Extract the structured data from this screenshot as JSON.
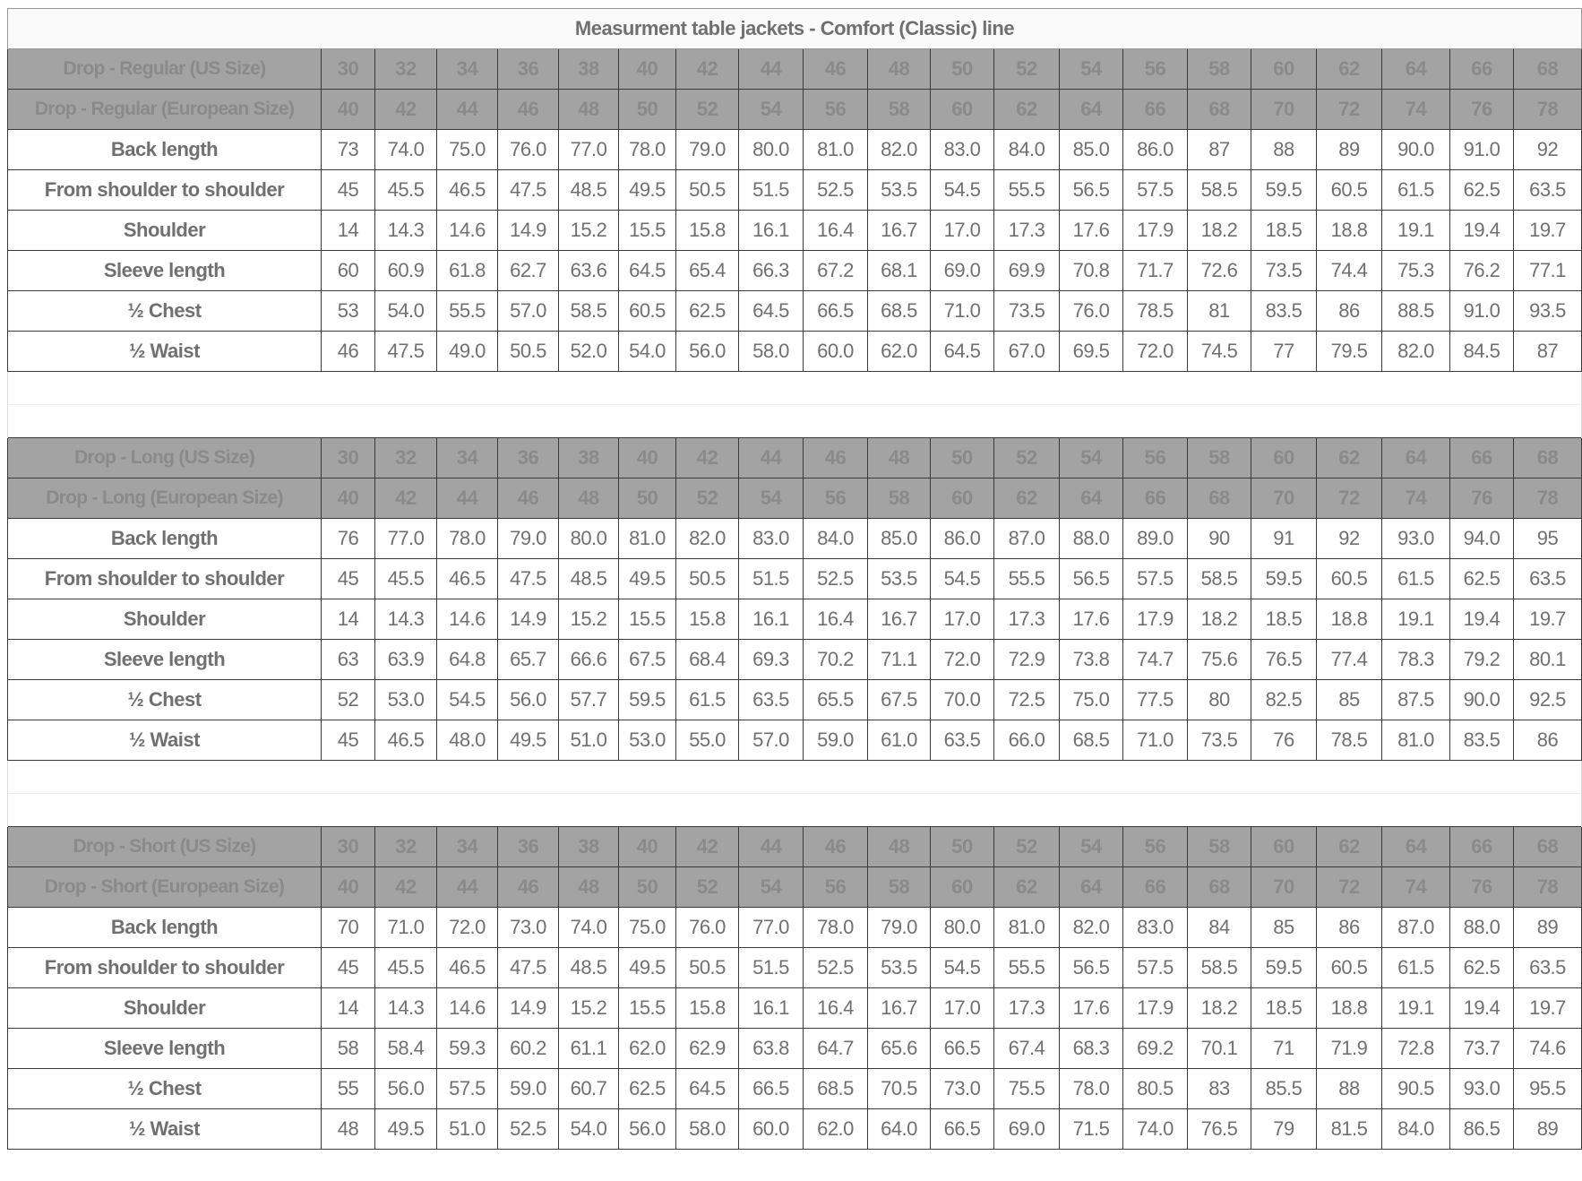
{
  "title": "Measurment table jackets - Comfort (Classic) line",
  "sections": [
    {
      "us_label": "Drop - Regular (US Size)",
      "eu_label": "Drop - Regular (European Size)",
      "us": [
        "30",
        "32",
        "34",
        "36",
        "38",
        "40",
        "42",
        "44",
        "46",
        "48",
        "50",
        "52",
        "54",
        "56",
        "58",
        "60",
        "62",
        "64",
        "66",
        "68"
      ],
      "eu": [
        "40",
        "42",
        "44",
        "46",
        "48",
        "50",
        "52",
        "54",
        "56",
        "58",
        "60",
        "62",
        "64",
        "66",
        "68",
        "70",
        "72",
        "74",
        "76",
        "78"
      ],
      "rows": [
        {
          "label": "Back length",
          "values": [
            "73",
            "74.0",
            "75.0",
            "76.0",
            "77.0",
            "78.0",
            "79.0",
            "80.0",
            "81.0",
            "82.0",
            "83.0",
            "84.0",
            "85.0",
            "86.0",
            "87",
            "88",
            "89",
            "90.0",
            "91.0",
            "92"
          ]
        },
        {
          "label": "From shoulder to shoulder",
          "values": [
            "45",
            "45.5",
            "46.5",
            "47.5",
            "48.5",
            "49.5",
            "50.5",
            "51.5",
            "52.5",
            "53.5",
            "54.5",
            "55.5",
            "56.5",
            "57.5",
            "58.5",
            "59.5",
            "60.5",
            "61.5",
            "62.5",
            "63.5"
          ]
        },
        {
          "label": "Shoulder",
          "values": [
            "14",
            "14.3",
            "14.6",
            "14.9",
            "15.2",
            "15.5",
            "15.8",
            "16.1",
            "16.4",
            "16.7",
            "17.0",
            "17.3",
            "17.6",
            "17.9",
            "18.2",
            "18.5",
            "18.8",
            "19.1",
            "19.4",
            "19.7"
          ]
        },
        {
          "label": "Sleeve length",
          "values": [
            "60",
            "60.9",
            "61.8",
            "62.7",
            "63.6",
            "64.5",
            "65.4",
            "66.3",
            "67.2",
            "68.1",
            "69.0",
            "69.9",
            "70.8",
            "71.7",
            "72.6",
            "73.5",
            "74.4",
            "75.3",
            "76.2",
            "77.1"
          ]
        },
        {
          "label": "½ Chest",
          "values": [
            "53",
            "54.0",
            "55.5",
            "57.0",
            "58.5",
            "60.5",
            "62.5",
            "64.5",
            "66.5",
            "68.5",
            "71.0",
            "73.5",
            "76.0",
            "78.5",
            "81",
            "83.5",
            "86",
            "88.5",
            "91.0",
            "93.5"
          ]
        },
        {
          "label": "½ Waist",
          "values": [
            "46",
            "47.5",
            "49.0",
            "50.5",
            "52.0",
            "54.0",
            "56.0",
            "58.0",
            "60.0",
            "62.0",
            "64.5",
            "67.0",
            "69.5",
            "72.0",
            "74.5",
            "77",
            "79.5",
            "82.0",
            "84.5",
            "87"
          ]
        }
      ]
    },
    {
      "us_label": "Drop - Long (US Size)",
      "eu_label": "Drop - Long (European Size)",
      "us": [
        "30",
        "32",
        "34",
        "36",
        "38",
        "40",
        "42",
        "44",
        "46",
        "48",
        "50",
        "52",
        "54",
        "56",
        "58",
        "60",
        "62",
        "64",
        "66",
        "68"
      ],
      "eu": [
        "40",
        "42",
        "44",
        "46",
        "48",
        "50",
        "52",
        "54",
        "56",
        "58",
        "60",
        "62",
        "64",
        "66",
        "68",
        "70",
        "72",
        "74",
        "76",
        "78"
      ],
      "rows": [
        {
          "label": "Back length",
          "values": [
            "76",
            "77.0",
            "78.0",
            "79.0",
            "80.0",
            "81.0",
            "82.0",
            "83.0",
            "84.0",
            "85.0",
            "86.0",
            "87.0",
            "88.0",
            "89.0",
            "90",
            "91",
            "92",
            "93.0",
            "94.0",
            "95"
          ]
        },
        {
          "label": "From shoulder to shoulder",
          "values": [
            "45",
            "45.5",
            "46.5",
            "47.5",
            "48.5",
            "49.5",
            "50.5",
            "51.5",
            "52.5",
            "53.5",
            "54.5",
            "55.5",
            "56.5",
            "57.5",
            "58.5",
            "59.5",
            "60.5",
            "61.5",
            "62.5",
            "63.5"
          ]
        },
        {
          "label": "Shoulder",
          "values": [
            "14",
            "14.3",
            "14.6",
            "14.9",
            "15.2",
            "15.5",
            "15.8",
            "16.1",
            "16.4",
            "16.7",
            "17.0",
            "17.3",
            "17.6",
            "17.9",
            "18.2",
            "18.5",
            "18.8",
            "19.1",
            "19.4",
            "19.7"
          ]
        },
        {
          "label": "Sleeve length",
          "values": [
            "63",
            "63.9",
            "64.8",
            "65.7",
            "66.6",
            "67.5",
            "68.4",
            "69.3",
            "70.2",
            "71.1",
            "72.0",
            "72.9",
            "73.8",
            "74.7",
            "75.6",
            "76.5",
            "77.4",
            "78.3",
            "79.2",
            "80.1"
          ]
        },
        {
          "label": "½ Chest",
          "values": [
            "52",
            "53.0",
            "54.5",
            "56.0",
            "57.7",
            "59.5",
            "61.5",
            "63.5",
            "65.5",
            "67.5",
            "70.0",
            "72.5",
            "75.0",
            "77.5",
            "80",
            "82.5",
            "85",
            "87.5",
            "90.0",
            "92.5"
          ]
        },
        {
          "label": "½ Waist",
          "values": [
            "45",
            "46.5",
            "48.0",
            "49.5",
            "51.0",
            "53.0",
            "55.0",
            "57.0",
            "59.0",
            "61.0",
            "63.5",
            "66.0",
            "68.5",
            "71.0",
            "73.5",
            "76",
            "78.5",
            "81.0",
            "83.5",
            "86"
          ]
        }
      ]
    },
    {
      "us_label": "Drop - Short (US Size)",
      "eu_label": "Drop - Short (European Size)",
      "us": [
        "30",
        "32",
        "34",
        "36",
        "38",
        "40",
        "42",
        "44",
        "46",
        "48",
        "50",
        "52",
        "54",
        "56",
        "58",
        "60",
        "62",
        "64",
        "66",
        "68"
      ],
      "eu": [
        "40",
        "42",
        "44",
        "46",
        "48",
        "50",
        "52",
        "54",
        "56",
        "58",
        "60",
        "62",
        "64",
        "66",
        "68",
        "70",
        "72",
        "74",
        "76",
        "78"
      ],
      "rows": [
        {
          "label": "Back length",
          "values": [
            "70",
            "71.0",
            "72.0",
            "73.0",
            "74.0",
            "75.0",
            "76.0",
            "77.0",
            "78.0",
            "79.0",
            "80.0",
            "81.0",
            "82.0",
            "83.0",
            "84",
            "85",
            "86",
            "87.0",
            "88.0",
            "89"
          ]
        },
        {
          "label": "From shoulder to shoulder",
          "values": [
            "45",
            "45.5",
            "46.5",
            "47.5",
            "48.5",
            "49.5",
            "50.5",
            "51.5",
            "52.5",
            "53.5",
            "54.5",
            "55.5",
            "56.5",
            "57.5",
            "58.5",
            "59.5",
            "60.5",
            "61.5",
            "62.5",
            "63.5"
          ]
        },
        {
          "label": "Shoulder",
          "values": [
            "14",
            "14.3",
            "14.6",
            "14.9",
            "15.2",
            "15.5",
            "15.8",
            "16.1",
            "16.4",
            "16.7",
            "17.0",
            "17.3",
            "17.6",
            "17.9",
            "18.2",
            "18.5",
            "18.8",
            "19.1",
            "19.4",
            "19.7"
          ]
        },
        {
          "label": "Sleeve length",
          "values": [
            "58",
            "58.4",
            "59.3",
            "60.2",
            "61.1",
            "62.0",
            "62.9",
            "63.8",
            "64.7",
            "65.6",
            "66.5",
            "67.4",
            "68.3",
            "69.2",
            "70.1",
            "71",
            "71.9",
            "72.8",
            "73.7",
            "74.6"
          ]
        },
        {
          "label": "½ Chest",
          "values": [
            "55",
            "56.0",
            "57.5",
            "59.0",
            "60.7",
            "62.5",
            "64.5",
            "66.5",
            "68.5",
            "70.5",
            "73.0",
            "75.5",
            "78.0",
            "80.5",
            "83",
            "85.5",
            "88",
            "90.5",
            "93.0",
            "95.5"
          ]
        },
        {
          "label": "½ Waist",
          "values": [
            "48",
            "49.5",
            "51.0",
            "52.5",
            "54.0",
            "56.0",
            "58.0",
            "60.0",
            "62.0",
            "64.0",
            "66.5",
            "69.0",
            "71.5",
            "74.0",
            "76.5",
            "79",
            "81.5",
            "84.0",
            "86.5",
            "89"
          ]
        }
      ]
    }
  ]
}
